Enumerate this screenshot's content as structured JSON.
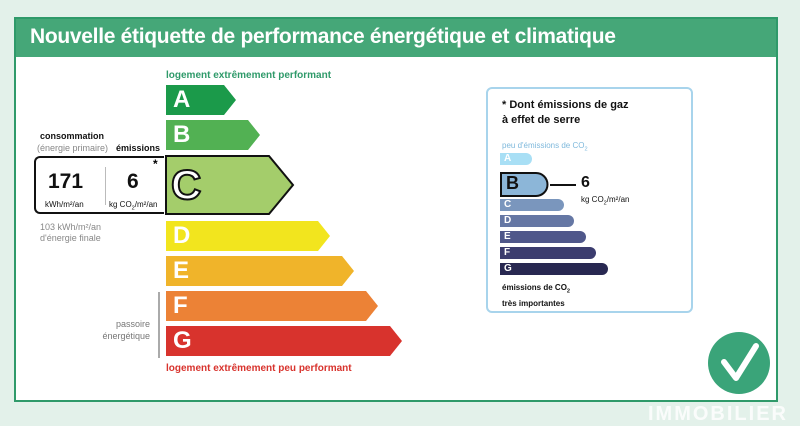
{
  "title": "Nouvelle étiquette de performance énergétique et climatique",
  "top_note": "logement extrêmement performant",
  "bottom_note": "logement extrêmement peu performant",
  "consommation": {
    "label": "consommation",
    "sublabel": "(énergie primaire)",
    "value": "171",
    "unit": "kWh/m²/an",
    "finale_line1": "103 kWh/m²/an",
    "finale_line2": "d'énergie finale"
  },
  "emissions": {
    "label": "émissions",
    "value": "6",
    "unit_pre": "kg CO",
    "unit_sub": "2",
    "unit_post": "/m²/an",
    "asterisk": "*"
  },
  "passoire_line1": "passoire",
  "passoire_line2": "énergétique",
  "energy_classes": [
    "A",
    "B",
    "C",
    "D",
    "E",
    "F",
    "G"
  ],
  "energy_current": "C",
  "energy_colors": {
    "A": "#1b9a4a",
    "B": "#52b153",
    "C": "#a4cd6b",
    "D": "#f2e51e",
    "E": "#f0b42a",
    "F": "#ec8236",
    "G": "#d8332d"
  },
  "co2": {
    "title_line1": "* Dont émissions de gaz",
    "title_line2": "à effet de serre",
    "top_note_pre": "peu d'émissions de CO",
    "top_note_sub": "2",
    "bottom_note_line1_pre": "émissions de CO",
    "bottom_note_line1_sub": "2",
    "bottom_note_line2": "très importantes",
    "classes": [
      "A",
      "B",
      "C",
      "D",
      "E",
      "F",
      "G"
    ],
    "current": "B",
    "value": "6",
    "unit_pre": "kg CO",
    "unit_sub": "2",
    "unit_post": "/m²/an",
    "colors": {
      "A": "#a8dff5",
      "B": "#8cb6d8",
      "C": "#7a96bd",
      "D": "#6577a4",
      "E": "#4f578a",
      "F": "#3b3c6e",
      "G": "#282851"
    }
  },
  "brand": "IMMOBILIER"
}
